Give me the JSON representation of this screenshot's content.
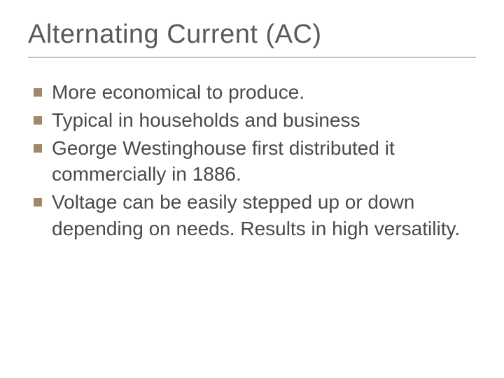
{
  "slide": {
    "title": "Alternating Current (AC)",
    "title_color": "#5a5a5a",
    "title_fontsize": 38,
    "divider_color": "#c8c2b6",
    "bullet_color": "#a08868",
    "text_color": "#4a4a4a",
    "body_fontsize": 28,
    "background_color": "#ffffff",
    "bullets": [
      {
        "text": "More economical to produce."
      },
      {
        "text": "Typical in households and business"
      },
      {
        "text": "George Westinghouse first distributed it commercially in 1886."
      },
      {
        "text": "Voltage can be easily stepped up or down depending on needs. Results in high versatility."
      }
    ]
  }
}
